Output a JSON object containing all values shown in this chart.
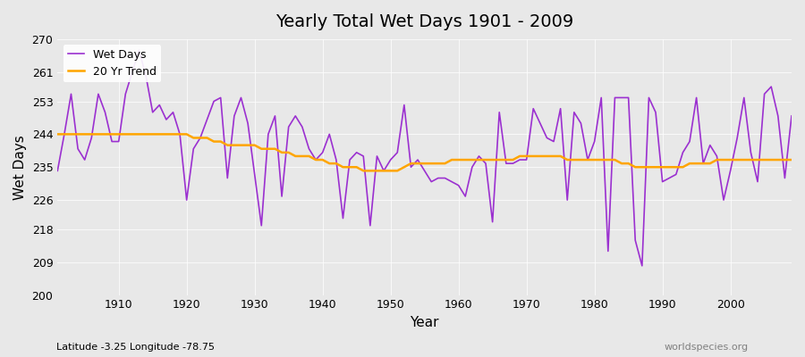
{
  "title": "Yearly Total Wet Days 1901 - 2009",
  "xlabel": "Year",
  "ylabel": "Wet Days",
  "subtitle": "Latitude -3.25 Longitude -78.75",
  "watermark": "worldspecies.org",
  "ylim": [
    200,
    270
  ],
  "yticks": [
    200,
    209,
    218,
    226,
    235,
    244,
    253,
    261,
    270
  ],
  "bg_color": "#e8e8e8",
  "plot_bg_color": "#e8e8e8",
  "wet_days_color": "#9b30d0",
  "trend_color": "#ffa500",
  "legend_wet_label": "Wet Days",
  "legend_trend_label": "20 Yr Trend",
  "years": [
    1901,
    1902,
    1903,
    1904,
    1905,
    1906,
    1907,
    1908,
    1909,
    1910,
    1911,
    1912,
    1913,
    1914,
    1915,
    1916,
    1917,
    1918,
    1919,
    1920,
    1921,
    1922,
    1923,
    1924,
    1925,
    1926,
    1927,
    1928,
    1929,
    1930,
    1931,
    1932,
    1933,
    1934,
    1935,
    1936,
    1937,
    1938,
    1939,
    1940,
    1941,
    1942,
    1943,
    1944,
    1945,
    1946,
    1947,
    1948,
    1949,
    1950,
    1951,
    1952,
    1953,
    1954,
    1955,
    1956,
    1957,
    1958,
    1959,
    1960,
    1961,
    1962,
    1963,
    1964,
    1965,
    1966,
    1967,
    1968,
    1969,
    1970,
    1971,
    1972,
    1973,
    1974,
    1975,
    1976,
    1977,
    1978,
    1979,
    1980,
    1981,
    1982,
    1983,
    1984,
    1985,
    1986,
    1987,
    1988,
    1989,
    1990,
    1991,
    1992,
    1993,
    1994,
    1995,
    1996,
    1997,
    1998,
    1999,
    2000,
    2001,
    2002,
    2003,
    2004,
    2005,
    2006,
    2007,
    2008,
    2009
  ],
  "wet_days": [
    234,
    244,
    255,
    240,
    237,
    243,
    255,
    250,
    242,
    242,
    255,
    261,
    267,
    260,
    250,
    252,
    248,
    250,
    244,
    226,
    240,
    243,
    248,
    253,
    254,
    232,
    249,
    254,
    247,
    233,
    219,
    244,
    249,
    227,
    246,
    249,
    246,
    240,
    237,
    239,
    244,
    237,
    221,
    237,
    239,
    238,
    219,
    238,
    234,
    237,
    239,
    252,
    235,
    237,
    234,
    231,
    232,
    232,
    231,
    230,
    227,
    235,
    238,
    236,
    220,
    250,
    236,
    236,
    237,
    237,
    251,
    247,
    243,
    242,
    251,
    226,
    250,
    247,
    237,
    242,
    254,
    212,
    254,
    254,
    254,
    215,
    208,
    254,
    250,
    231,
    232,
    233,
    239,
    242,
    254,
    236,
    241,
    238,
    226,
    234,
    243,
    254,
    239,
    231,
    255,
    257,
    249,
    232,
    249
  ],
  "trend": [
    244,
    244,
    244,
    244,
    244,
    244,
    244,
    244,
    244,
    244,
    244,
    244,
    244,
    244,
    244,
    244,
    244,
    244,
    244,
    244,
    243,
    243,
    243,
    242,
    242,
    241,
    241,
    241,
    241,
    241,
    240,
    240,
    240,
    239,
    239,
    238,
    238,
    238,
    237,
    237,
    236,
    236,
    235,
    235,
    235,
    234,
    234,
    234,
    234,
    234,
    234,
    235,
    236,
    236,
    236,
    236,
    236,
    236,
    237,
    237,
    237,
    237,
    237,
    237,
    237,
    237,
    237,
    237,
    238,
    238,
    238,
    238,
    238,
    238,
    238,
    237,
    237,
    237,
    237,
    237,
    237,
    237,
    237,
    236,
    236,
    235,
    235,
    235,
    235,
    235,
    235,
    235,
    235,
    236,
    236,
    236,
    236,
    237,
    237,
    237,
    237,
    237,
    237,
    237,
    237,
    237,
    237,
    237,
    237
  ]
}
